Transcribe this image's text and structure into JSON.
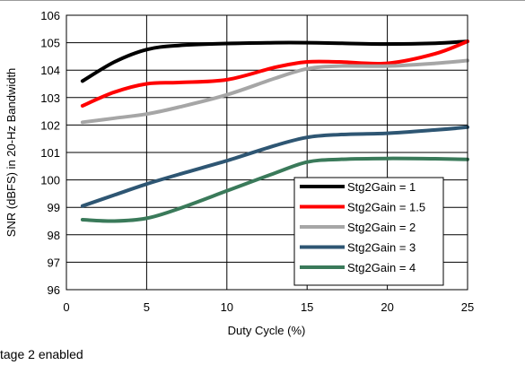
{
  "caption": "tage 2 enabled",
  "chart_data": {
    "type": "line",
    "title": "",
    "xlabel": "Duty Cycle (%)",
    "ylabel": "SNR (dBFS) in 20-Hz Bandwidth",
    "xlim": [
      0,
      25
    ],
    "ylim": [
      96,
      106
    ],
    "xticks": [
      0,
      5,
      10,
      15,
      20,
      25
    ],
    "yticks": [
      96,
      97,
      98,
      99,
      100,
      101,
      102,
      103,
      104,
      105,
      106
    ],
    "grid": true,
    "legend_position": "bottom-right",
    "series": [
      {
        "name": "Stg2Gain = 1",
        "color": "#000000",
        "x": [
          1,
          3,
          5,
          7,
          10,
          13,
          15,
          17,
          20,
          23,
          25
        ],
        "y": [
          103.6,
          104.3,
          104.75,
          104.9,
          104.97,
          105.0,
          105.0,
          104.98,
          104.95,
          104.98,
          105.05
        ]
      },
      {
        "name": "Stg2Gain = 1.5",
        "color": "#ff0000",
        "x": [
          1,
          3,
          5,
          7,
          10,
          13,
          15,
          17,
          20,
          23,
          25
        ],
        "y": [
          102.7,
          103.2,
          103.5,
          103.55,
          103.65,
          104.1,
          104.3,
          104.3,
          104.25,
          104.6,
          105.05
        ]
      },
      {
        "name": "Stg2Gain = 2",
        "color": "#a6a6a6",
        "x": [
          1,
          3,
          5,
          7,
          10,
          13,
          15,
          17,
          20,
          23,
          25
        ],
        "y": [
          102.1,
          102.25,
          102.4,
          102.65,
          103.1,
          103.7,
          104.05,
          104.15,
          104.15,
          104.25,
          104.35
        ]
      },
      {
        "name": "Stg2Gain = 3",
        "color": "#2e5673",
        "x": [
          1,
          3,
          5,
          7,
          10,
          13,
          15,
          17,
          20,
          23,
          25
        ],
        "y": [
          99.05,
          99.45,
          99.85,
          100.2,
          100.7,
          101.25,
          101.55,
          101.65,
          101.7,
          101.82,
          101.92
        ]
      },
      {
        "name": "Stg2Gain = 4",
        "color": "#3a7a5a",
        "x": [
          1,
          3,
          5,
          7,
          10,
          13,
          15,
          17,
          20,
          23,
          25
        ],
        "y": [
          98.55,
          98.5,
          98.6,
          98.95,
          99.6,
          100.25,
          100.65,
          100.75,
          100.78,
          100.77,
          100.75
        ]
      }
    ]
  }
}
